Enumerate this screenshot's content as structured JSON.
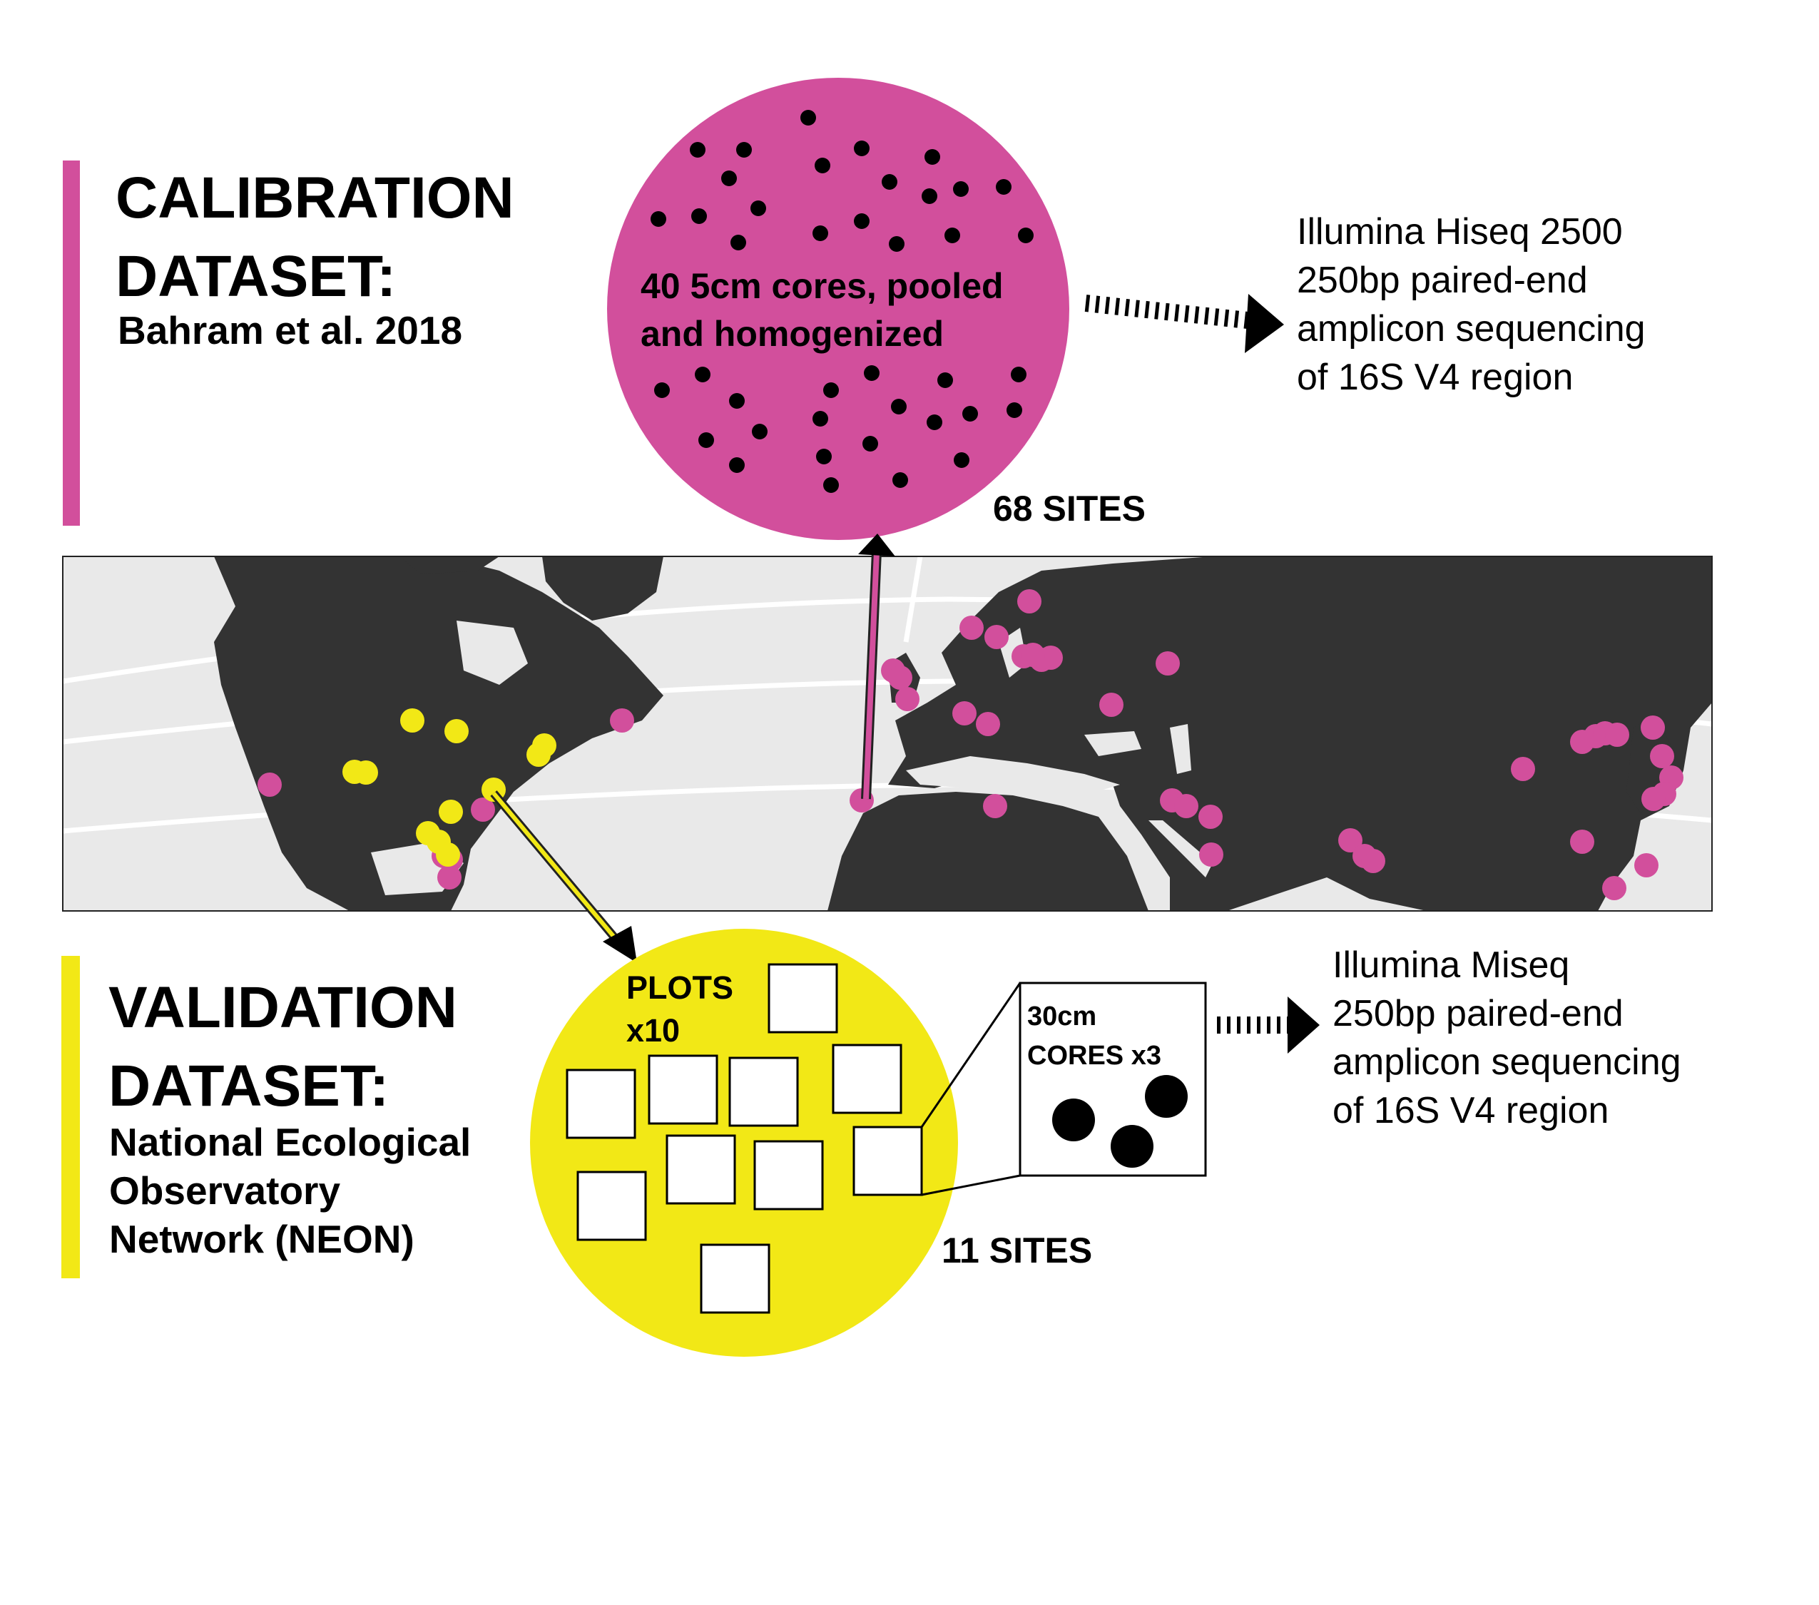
{
  "colors": {
    "calibration": "#d24f9c",
    "validation": "#f2e816",
    "land": "#333333",
    "ocean": "#e9e9e9",
    "graticule": "#ffffff"
  },
  "calibration": {
    "title_line1": "CALIBRATION",
    "title_line2": "DATASET:",
    "citation": "Bahram et al. 2018",
    "circle_text_line1": "40 5cm cores, pooled",
    "circle_text_line2": "and homogenized",
    "sites_label": "68 SITES",
    "sequencing": [
      "Illumina Hiseq 2500",
      "250bp paired-end",
      "amplicon sequencing",
      "of 16S V4 region"
    ]
  },
  "validation": {
    "title_line1": "VALIDATION",
    "title_line2": "DATASET:",
    "source_lines": [
      "National Ecological",
      "Observatory",
      "Network (NEON)"
    ],
    "plots_label_line1": "PLOTS",
    "plots_label_line2": "x10",
    "cores_label_line1": "30cm",
    "cores_label_line2": "CORES x3",
    "sites_label": "11 SITES",
    "sequencing": [
      "Illumina Miseq",
      "250bp paired-end",
      "amplicon sequencing",
      "of 16S V4 region"
    ]
  }
}
